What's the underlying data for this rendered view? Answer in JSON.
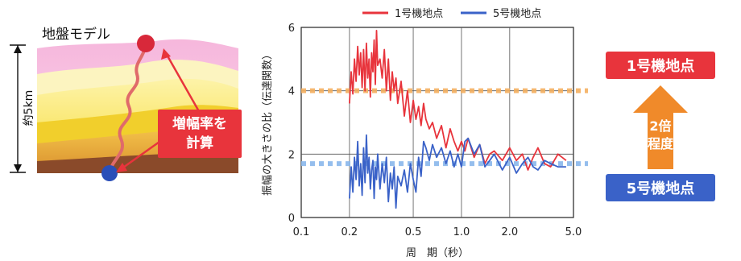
{
  "ground_model": {
    "title": "地盤モデル",
    "depth_label": "約5km",
    "callout_line1": "増幅率を",
    "callout_line2": "計算",
    "colors": {
      "layer_top": "#f4b8d8",
      "layer_mid": "#f8e24a",
      "layer_low": "#e8a23a",
      "bedrock": "#8a4a28",
      "callout": "#e8343c",
      "surface_point": "#d8283a",
      "base_point": "#2a4eb8"
    }
  },
  "chart_data": {
    "type": "line",
    "xlabel": "周　期（秒）",
    "ylabel": "振幅の大きさの比（伝達関数）",
    "xscale": "log",
    "xlim": [
      0.1,
      5.0
    ],
    "ylim": [
      0,
      6
    ],
    "x_ticks": [
      {
        "value": 0.1,
        "label": "0.1"
      },
      {
        "value": 0.2,
        "label": "0.2"
      },
      {
        "value": 0.5,
        "label": "0.5"
      },
      {
        "value": 1.0,
        "label": "1.0"
      },
      {
        "value": 2.0,
        "label": "2.0"
      },
      {
        "value": 5.0,
        "label": "5.0"
      }
    ],
    "y_ticks": [
      0,
      2,
      4,
      6
    ],
    "grid": true,
    "legend_position": "top",
    "series": [
      {
        "name": "1号機地点",
        "color": "#e8343c",
        "x": [
          0.2,
          0.205,
          0.21,
          0.215,
          0.22,
          0.225,
          0.23,
          0.235,
          0.24,
          0.245,
          0.25,
          0.255,
          0.26,
          0.265,
          0.27,
          0.275,
          0.28,
          0.285,
          0.29,
          0.295,
          0.3,
          0.31,
          0.32,
          0.33,
          0.34,
          0.35,
          0.36,
          0.37,
          0.38,
          0.39,
          0.4,
          0.42,
          0.44,
          0.46,
          0.48,
          0.5,
          0.52,
          0.54,
          0.56,
          0.58,
          0.6,
          0.63,
          0.66,
          0.7,
          0.75,
          0.8,
          0.85,
          0.9,
          0.95,
          1.0,
          1.05,
          1.1,
          1.2,
          1.3,
          1.4,
          1.5,
          1.6,
          1.8,
          2.0,
          2.2,
          2.4,
          2.6,
          2.8,
          3.0,
          3.3,
          3.6,
          4.0,
          4.5
        ],
        "y": [
          3.6,
          4.6,
          3.9,
          5.0,
          4.3,
          5.4,
          4.5,
          5.2,
          4.1,
          5.3,
          4.0,
          5.5,
          4.4,
          5.0,
          3.8,
          5.2,
          4.6,
          5.6,
          4.2,
          5.9,
          4.8,
          5.0,
          4.4,
          5.3,
          4.0,
          5.0,
          3.7,
          4.6,
          4.0,
          4.4,
          3.6,
          4.3,
          3.2,
          4.0,
          3.0,
          3.7,
          3.1,
          3.5,
          2.9,
          3.6,
          3.1,
          2.8,
          3.0,
          2.5,
          2.9,
          2.2,
          2.8,
          2.4,
          2.1,
          2.4,
          2.1,
          2.5,
          1.9,
          2.3,
          1.7,
          2.0,
          2.1,
          1.8,
          2.2,
          1.8,
          2.0,
          1.5,
          1.9,
          2.2,
          1.7,
          1.6,
          2.0,
          1.8
        ]
      },
      {
        "name": "5号機地点",
        "color": "#3a62c8",
        "x": [
          0.2,
          0.205,
          0.21,
          0.215,
          0.22,
          0.225,
          0.23,
          0.235,
          0.24,
          0.245,
          0.25,
          0.255,
          0.26,
          0.265,
          0.27,
          0.275,
          0.28,
          0.285,
          0.29,
          0.295,
          0.3,
          0.31,
          0.32,
          0.33,
          0.34,
          0.35,
          0.36,
          0.37,
          0.38,
          0.39,
          0.4,
          0.42,
          0.44,
          0.46,
          0.48,
          0.5,
          0.52,
          0.54,
          0.56,
          0.58,
          0.6,
          0.63,
          0.66,
          0.7,
          0.75,
          0.8,
          0.85,
          0.9,
          0.95,
          1.0,
          1.05,
          1.1,
          1.2,
          1.3,
          1.4,
          1.5,
          1.6,
          1.8,
          2.0,
          2.2,
          2.4,
          2.6,
          2.8,
          3.0,
          3.3,
          3.6,
          4.0,
          4.5
        ],
        "y": [
          0.6,
          1.6,
          0.8,
          1.9,
          1.2,
          2.4,
          1.0,
          1.7,
          0.7,
          2.2,
          1.1,
          2.6,
          1.4,
          1.9,
          0.9,
          1.5,
          1.8,
          0.6,
          1.6,
          1.2,
          2.0,
          0.9,
          1.7,
          1.1,
          1.9,
          0.5,
          1.4,
          0.9,
          1.6,
          0.3,
          1.3,
          1.0,
          1.5,
          0.8,
          1.7,
          1.2,
          0.8,
          1.9,
          1.3,
          2.4,
          2.2,
          1.8,
          2.3,
          1.9,
          2.2,
          1.7,
          2.1,
          1.6,
          2.0,
          1.6,
          2.4,
          2.5,
          2.0,
          2.3,
          1.6,
          1.8,
          2.0,
          1.5,
          1.9,
          1.4,
          1.7,
          1.9,
          1.6,
          1.5,
          1.8,
          1.7,
          1.6,
          1.6
        ]
      }
    ],
    "reference_lines": [
      {
        "y": 4.0,
        "color": "#f4b060"
      },
      {
        "y": 1.7,
        "color": "#8ab8ec"
      }
    ]
  },
  "annotation": {
    "top_label": "1号機地点",
    "bottom_label": "5号機地点",
    "ratio_line1": "2倍",
    "ratio_line2": "程度",
    "colors": {
      "top_box": "#e8343c",
      "bottom_box": "#3a62c8",
      "arrow": "#f08a2a"
    }
  }
}
